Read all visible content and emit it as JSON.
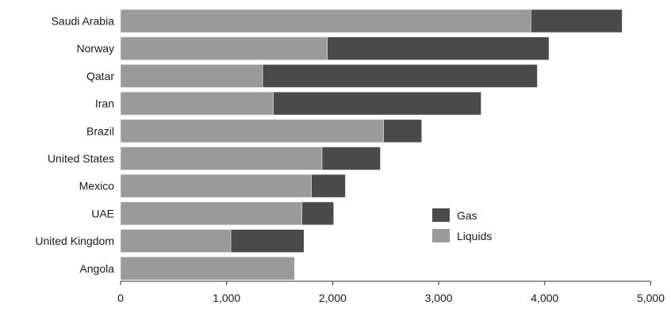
{
  "chart_data": {
    "type": "bar",
    "orientation": "horizontal",
    "stacked": true,
    "categories": [
      "Saudi Arabia",
      "Norway",
      "Qatar",
      "Iran",
      "Brazil",
      "United States",
      "Mexico",
      "UAE",
      "United Kingdom",
      "Angola"
    ],
    "series": [
      {
        "name": "Liquids",
        "color": "#9a9a9a",
        "values": [
          3870,
          1950,
          1340,
          1440,
          2480,
          1900,
          1800,
          1710,
          1040,
          1640
        ]
      },
      {
        "name": "Gas",
        "color": "#4a4a4a",
        "values": [
          860,
          2090,
          2590,
          1960,
          360,
          550,
          320,
          300,
          690,
          0
        ]
      }
    ],
    "xticks": [
      "0",
      "1,000",
      "2,000",
      "3,000",
      "4,000",
      "5,000"
    ],
    "xlim": [
      0,
      5000
    ],
    "grid": false,
    "legend_position": "lower-right",
    "legend_order": [
      "Gas",
      "Liquids"
    ]
  }
}
